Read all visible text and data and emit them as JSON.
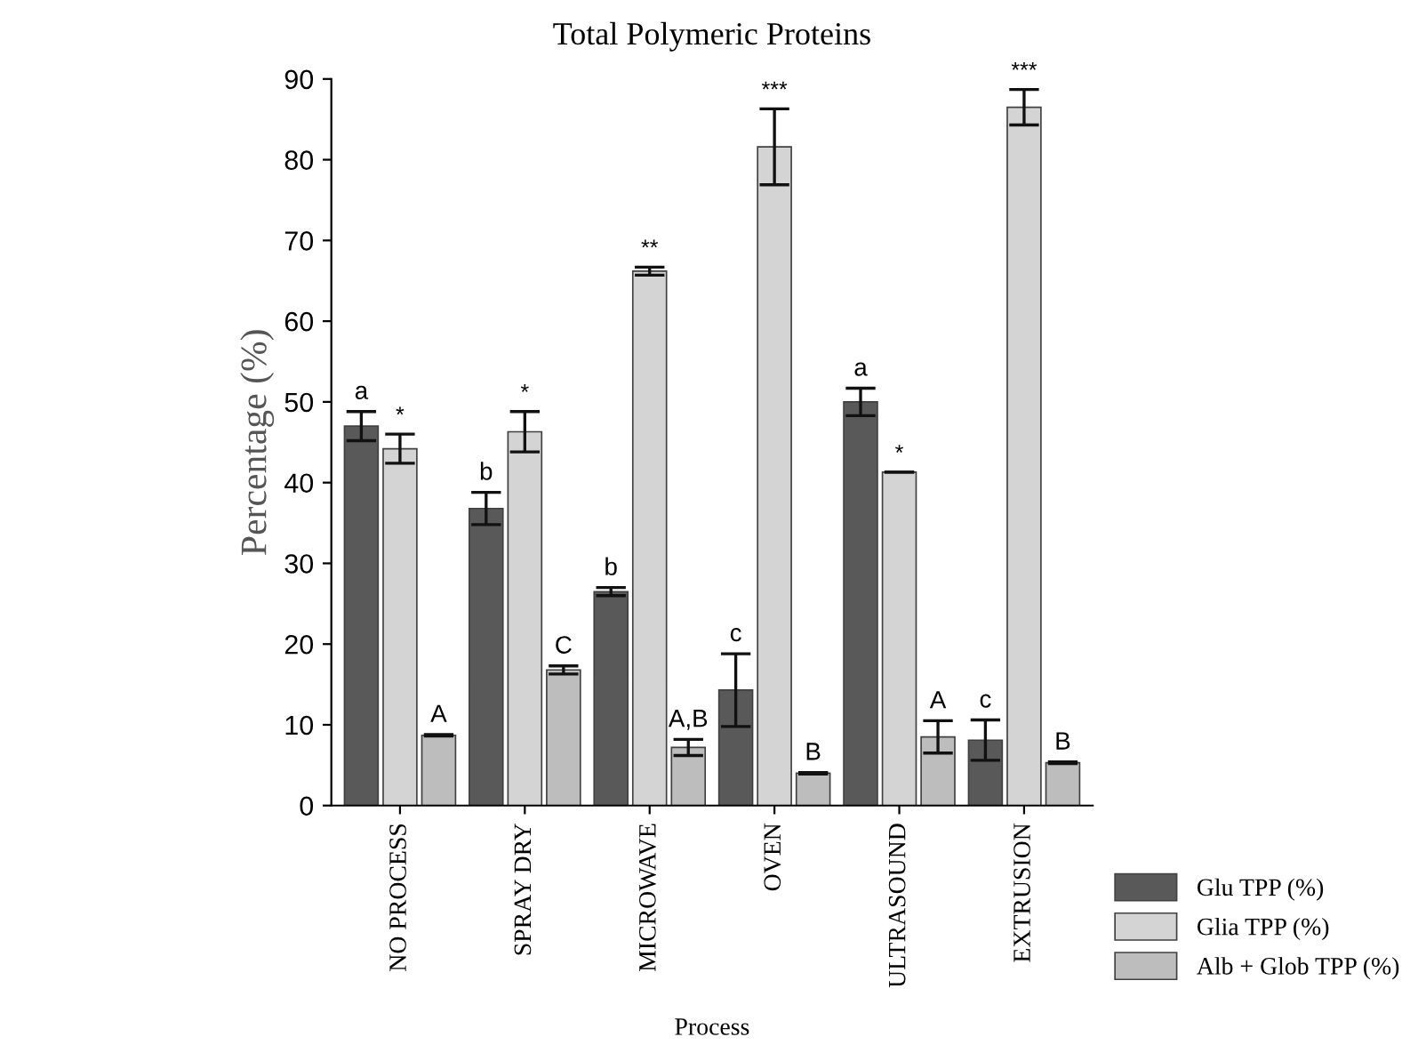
{
  "chart_data": {
    "type": "bar",
    "title": "Total Polymeric Proteins",
    "xlabel": "Process",
    "ylabel": "Percentage (%)",
    "categories": [
      "NO PROCESS",
      "SPRAY DRY",
      "MICROWAVE",
      "OVEN",
      "ULTRASOUND",
      "EXTRUSION"
    ],
    "series": [
      {
        "name": "Glu TPP (%)",
        "color": "#595959",
        "values": [
          47,
          36.8,
          26.5,
          14.3,
          50,
          8.1
        ],
        "errors": [
          1.8,
          2,
          0.5,
          4.5,
          1.7,
          2.5
        ]
      },
      {
        "name": "Glia TPP (%)",
        "color": "#d4d4d4",
        "values": [
          44.2,
          46.3,
          66.2,
          81.6,
          41.3,
          86.5
        ],
        "errors": [
          1.8,
          2.5,
          0.5,
          4.7,
          0,
          2.2
        ]
      },
      {
        "name": "Alb + Glob TPP (%)",
        "color": "#bdbdbd",
        "values": [
          8.7,
          16.8,
          7.2,
          4,
          8.5,
          5.3
        ],
        "errors": [
          0.1,
          0.5,
          1,
          0.1,
          2,
          0.1
        ]
      }
    ],
    "annotations": [
      "a",
      "*",
      "A",
      "b",
      "*",
      "C",
      "b",
      "**",
      "A,B",
      "c",
      "***",
      "B",
      "a",
      "*",
      "A",
      "c",
      "***",
      "B"
    ],
    "ylim": [
      0,
      90
    ],
    "yticks": [
      0,
      10,
      20,
      30,
      40,
      50,
      60,
      70,
      80,
      90
    ],
    "grid": false,
    "legend": "bottom right"
  }
}
